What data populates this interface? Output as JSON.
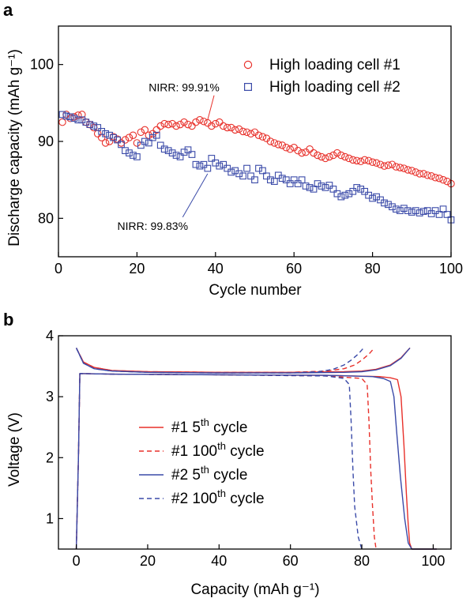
{
  "colors": {
    "red": "#e8302a",
    "blue": "#3a4aa8",
    "axis": "#000000"
  },
  "chart_data": [
    {
      "panel": "a",
      "type": "scatter",
      "title": "",
      "xlabel": "Cycle number",
      "ylabel": "Discharge capacity (mAh g⁻¹)",
      "xlim": [
        0,
        100
      ],
      "ylim": [
        75,
        105
      ],
      "xticks": [
        0,
        20,
        40,
        60,
        80,
        100
      ],
      "yticks": [
        80,
        90,
        100
      ],
      "grid": false,
      "legend_position": "top-right",
      "series": [
        {
          "name": "High loading cell #1",
          "marker": "circle",
          "color": "#e8302a",
          "x": [
            1,
            2,
            3,
            4,
            5,
            6,
            7,
            8,
            9,
            10,
            11,
            12,
            13,
            14,
            15,
            16,
            17,
            18,
            19,
            20,
            21,
            22,
            23,
            24,
            25,
            26,
            27,
            28,
            29,
            30,
            31,
            32,
            33,
            34,
            35,
            36,
            37,
            38,
            39,
            40,
            41,
            42,
            43,
            44,
            45,
            46,
            47,
            48,
            49,
            50,
            51,
            52,
            53,
            54,
            55,
            56,
            57,
            58,
            59,
            60,
            61,
            62,
            63,
            64,
            65,
            66,
            67,
            68,
            69,
            70,
            71,
            72,
            73,
            74,
            75,
            76,
            77,
            78,
            79,
            80,
            81,
            82,
            83,
            84,
            85,
            86,
            87,
            88,
            89,
            90,
            91,
            92,
            93,
            94,
            95,
            96,
            97,
            98,
            99,
            100
          ],
          "y": [
            92.5,
            93.5,
            93.0,
            93.2,
            93.4,
            93.5,
            92.5,
            92.2,
            91.8,
            91.0,
            90.5,
            89.8,
            90.0,
            90.6,
            90.3,
            89.8,
            90.2,
            90.5,
            90.8,
            89.8,
            91.2,
            91.5,
            90.8,
            91.0,
            91.5,
            92.0,
            92.3,
            92.2,
            92.3,
            92.0,
            92.2,
            92.5,
            92.2,
            92.0,
            92.5,
            92.8,
            92.6,
            92.4,
            92.0,
            92.3,
            92.5,
            92.0,
            91.8,
            91.8,
            91.5,
            91.6,
            91.3,
            91.2,
            91.0,
            91.2,
            90.8,
            90.6,
            90.4,
            90.0,
            89.8,
            89.6,
            89.5,
            89.2,
            89.0,
            89.2,
            88.8,
            88.5,
            88.6,
            89.0,
            88.5,
            88.2,
            88.0,
            87.8,
            88.0,
            88.2,
            88.5,
            88.2,
            88.0,
            87.8,
            87.6,
            87.5,
            87.4,
            87.6,
            87.5,
            87.3,
            87.2,
            87.0,
            86.8,
            86.9,
            87.0,
            86.7,
            86.6,
            86.5,
            86.3,
            86.2,
            86.0,
            85.8,
            85.8,
            85.6,
            85.5,
            85.3,
            85.2,
            85.0,
            84.8,
            84.5
          ]
        },
        {
          "name": "High loading cell #2",
          "marker": "square",
          "color": "#3a4aa8",
          "x": [
            1,
            2,
            3,
            4,
            5,
            6,
            7,
            8,
            9,
            10,
            11,
            12,
            13,
            14,
            15,
            16,
            17,
            18,
            19,
            20,
            21,
            22,
            23,
            24,
            25,
            26,
            27,
            28,
            29,
            30,
            31,
            32,
            33,
            34,
            35,
            36,
            37,
            38,
            39,
            40,
            41,
            42,
            43,
            44,
            45,
            46,
            47,
            48,
            49,
            50,
            51,
            52,
            53,
            54,
            55,
            56,
            57,
            58,
            59,
            60,
            61,
            62,
            63,
            64,
            65,
            66,
            67,
            68,
            69,
            70,
            71,
            72,
            73,
            74,
            75,
            76,
            77,
            78,
            79,
            80,
            81,
            82,
            83,
            84,
            85,
            86,
            87,
            88,
            89,
            90,
            91,
            92,
            93,
            94,
            95,
            96,
            97,
            98,
            99,
            100
          ],
          "y": [
            93.5,
            93.3,
            93.2,
            93.0,
            92.8,
            92.8,
            92.5,
            92.2,
            92.0,
            91.8,
            91.3,
            91.0,
            90.8,
            90.5,
            90.2,
            89.6,
            88.8,
            88.5,
            88.2,
            88.0,
            89.5,
            90.0,
            89.8,
            90.5,
            90.8,
            89.5,
            89.0,
            88.8,
            88.5,
            88.2,
            88.0,
            88.6,
            88.9,
            88.3,
            87.0,
            86.8,
            87.0,
            86.5,
            87.8,
            87.2,
            86.8,
            87.0,
            86.5,
            86.0,
            86.2,
            85.8,
            85.5,
            86.5,
            85.5,
            85.0,
            86.5,
            86.2,
            85.5,
            85.0,
            84.8,
            85.6,
            85.2,
            85.0,
            84.5,
            85.0,
            84.5,
            85.0,
            84.2,
            84.0,
            83.8,
            84.5,
            84.2,
            84.0,
            84.3,
            83.8,
            83.2,
            82.8,
            83.0,
            83.2,
            83.5,
            84.0,
            83.8,
            83.5,
            83.0,
            82.6,
            82.8,
            82.4,
            82.0,
            81.8,
            81.5,
            81.2,
            81.0,
            81.3,
            81.0,
            80.8,
            81.0,
            80.7,
            80.9,
            81.0,
            80.6,
            81.0,
            80.5,
            81.2,
            80.5,
            79.8
          ]
        }
      ],
      "annotations": [
        {
          "text": "NIRR: 99.91%",
          "x": 32,
          "y": 96.5,
          "arrow_to": [
            38,
            92.8
          ]
        },
        {
          "text": "NIRR: 99.83%",
          "x": 24,
          "y": 78.5,
          "arrow_to": [
            38,
            85.8
          ]
        }
      ]
    },
    {
      "panel": "b",
      "type": "line",
      "title": "",
      "xlabel": "Capacity (mAh g⁻¹)",
      "ylabel": "Voltage (V)",
      "xlim": [
        -5,
        105
      ],
      "ylim": [
        0.5,
        4.0
      ],
      "xticks": [
        0,
        20,
        40,
        60,
        80,
        100
      ],
      "yticks": [
        1,
        2,
        3,
        4
      ],
      "grid": false,
      "legend_position": "center-left",
      "series": [
        {
          "name": "#1 5th cycle",
          "label_base": "#1 5",
          "label_sup": "th",
          "label_tail": " cycle",
          "color": "#e8302a",
          "dash": "solid",
          "charge": {
            "x": [
              0,
              2,
              5,
              10,
              20,
              40,
              60,
              75,
              80,
              84,
              88,
              91,
              93.5
            ],
            "y": [
              3.8,
              3.57,
              3.48,
              3.43,
              3.41,
              3.4,
              3.4,
              3.41,
              3.42,
              3.45,
              3.52,
              3.64,
              3.8
            ]
          },
          "discharge": {
            "x": [
              0,
              0.6,
              1,
              10,
              40,
              70,
              85,
              88,
              90,
              91,
              91.8,
              92.5,
              93,
              93.4,
              94,
              98,
              101
            ],
            "y": [
              0.5,
              2.0,
              3.38,
              3.37,
              3.36,
              3.35,
              3.33,
              3.31,
              3.28,
              3.0,
              2.2,
              1.4,
              0.9,
              0.6,
              0.5,
              0.5,
              0.5
            ]
          }
        },
        {
          "name": "#1 100th cycle",
          "label_base": "#1 100",
          "label_sup": "th",
          "label_tail": " cycle",
          "color": "#e8302a",
          "dash": "dashed",
          "charge": {
            "x": [
              0,
              2,
              5,
              10,
              20,
              40,
              60,
              70,
              75,
              78,
              80,
              82,
              83.5
            ],
            "y": [
              3.8,
              3.57,
              3.48,
              3.43,
              3.41,
              3.4,
              3.4,
              3.42,
              3.46,
              3.52,
              3.6,
              3.7,
              3.8
            ]
          },
          "discharge": {
            "x": [
              0,
              0.6,
              1,
              10,
              40,
              70,
              80,
              81.5,
              82,
              82.5,
              83,
              83.5,
              84
            ],
            "y": [
              0.5,
              2.0,
              3.38,
              3.37,
              3.36,
              3.34,
              3.3,
              3.2,
              2.6,
              1.8,
              1.2,
              0.7,
              0.5
            ]
          }
        },
        {
          "name": "#2 5th cycle",
          "label_base": "#2 5",
          "label_sup": "th",
          "label_tail": " cycle",
          "color": "#3a4aa8",
          "dash": "solid",
          "charge": {
            "x": [
              0,
              2,
              5,
              10,
              20,
              40,
              60,
              75,
              80,
              84,
              88,
              91,
              93.5
            ],
            "y": [
              3.8,
              3.55,
              3.46,
              3.42,
              3.4,
              3.39,
              3.39,
              3.4,
              3.41,
              3.44,
              3.51,
              3.63,
              3.8
            ]
          },
          "discharge": {
            "x": [
              0,
              0.6,
              1,
              10,
              40,
              70,
              83,
              86,
              88,
              89,
              89.8,
              90.8,
              92,
              93,
              94,
              98,
              101
            ],
            "y": [
              0.5,
              2.0,
              3.38,
              3.37,
              3.36,
              3.35,
              3.33,
              3.3,
              3.25,
              3.0,
              2.4,
              1.7,
              1.0,
              0.6,
              0.5,
              0.5,
              0.5
            ]
          }
        },
        {
          "name": "#2 100th cycle",
          "label_base": "#2 100",
          "label_sup": "th",
          "label_tail": " cycle",
          "color": "#3a4aa8",
          "dash": "dashed",
          "charge": {
            "x": [
              0,
              2,
              5,
              10,
              20,
              40,
              60,
              68,
              72,
              75,
              77,
              79,
              80.5
            ],
            "y": [
              3.8,
              3.55,
              3.46,
              3.42,
              3.4,
              3.39,
              3.39,
              3.41,
              3.45,
              3.52,
              3.6,
              3.7,
              3.8
            ]
          },
          "discharge": {
            "x": [
              0,
              0.6,
              1,
              10,
              40,
              70,
              75,
              76.5,
              77,
              77.5,
              78,
              79,
              80
            ],
            "y": [
              0.5,
              2.0,
              3.38,
              3.37,
              3.36,
              3.34,
              3.3,
              3.2,
              2.6,
              1.8,
              1.2,
              0.7,
              0.5
            ]
          }
        }
      ]
    }
  ]
}
